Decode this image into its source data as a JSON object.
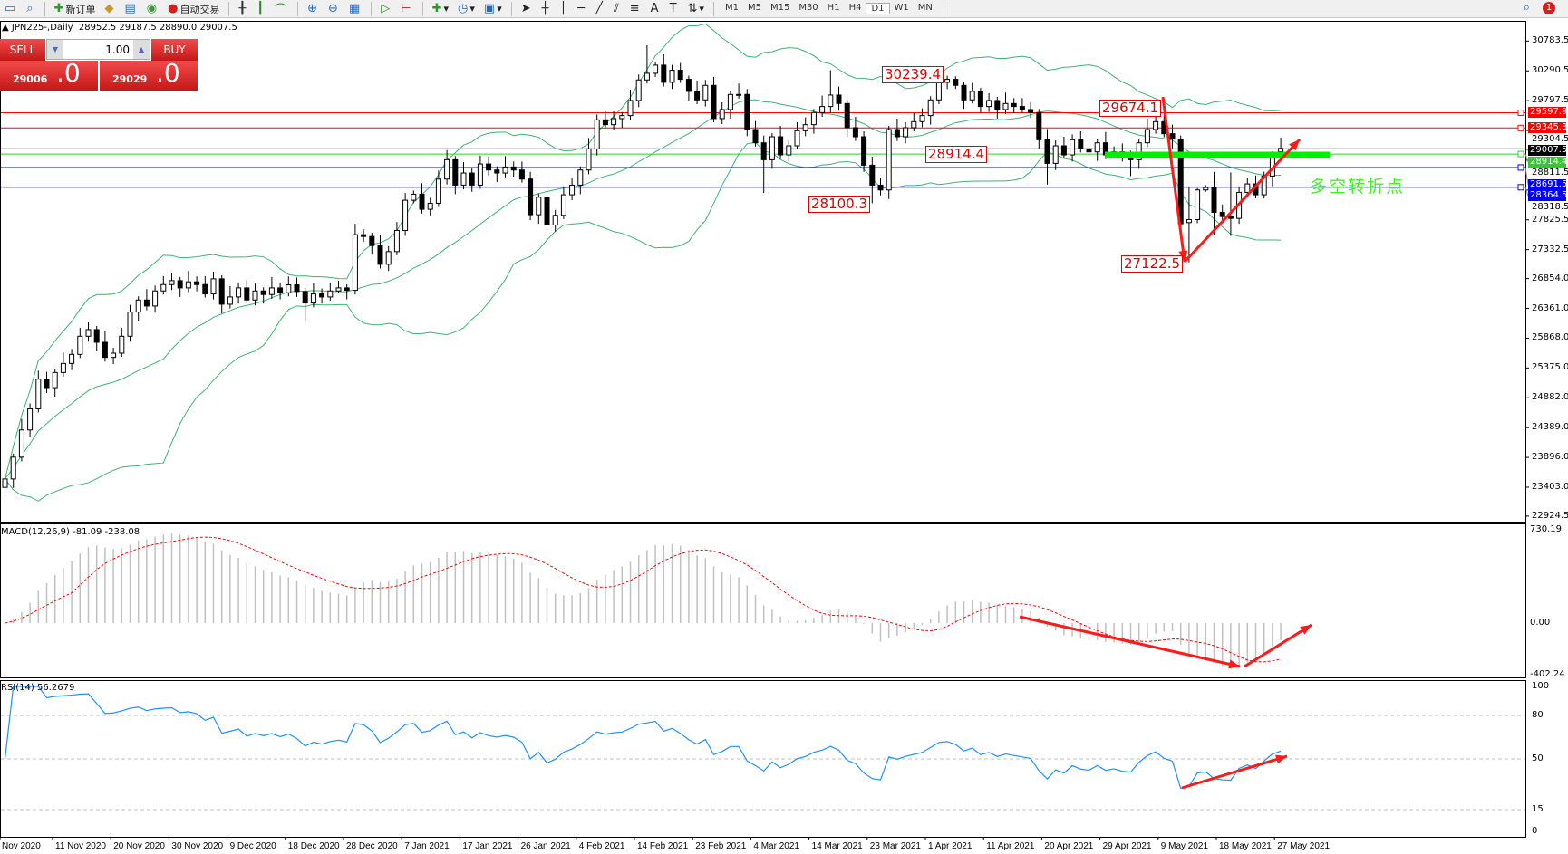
{
  "toolbar": {
    "new_order": "新订单",
    "auto_trading": "自动交易",
    "timeframes": [
      "M1",
      "M5",
      "M15",
      "M30",
      "H1",
      "H4",
      "D1",
      "W1",
      "MN"
    ],
    "active_timeframe": "D1",
    "notification_count": "1"
  },
  "chart": {
    "title": "JPN225-,Daily",
    "ohlc": "28952.5 29187.5 28890.0 29007.5"
  },
  "trade_panel": {
    "sell_label": "SELL",
    "buy_label": "BUY",
    "lot": "1.00",
    "bid_main": "29006",
    "bid_frac": ".0",
    "ask_main": "29029",
    "ask_frac": ".0"
  },
  "colors": {
    "bollinger": "#3cb371",
    "resistance": "#ff0000",
    "support": "#0000ff",
    "pivot": "#33cc33",
    "macd_hist": "#c0c0c0",
    "macd_signal": "#ff0000",
    "rsi": "#1e90ff"
  },
  "annotations": {
    "high_feb": "30239.4",
    "high_may": "29674.1",
    "pivot": "28914.4",
    "low_mar": "28100.3",
    "low_may": "27122.5",
    "turning_point": "多空转折点"
  },
  "chart_data": {
    "type": "candlestick",
    "symbol": "JPN225-",
    "timeframe": "Daily",
    "price_axis": [
      "30783.5",
      "30290.5",
      "29797.5",
      "29304.5",
      "28811.5",
      "28318.5",
      "27825.5",
      "27332.5",
      "26854.0",
      "26361.0",
      "25868.0",
      "25375.0",
      "24882.0",
      "24389.0",
      "23896.0",
      "23403.0",
      "22924.5"
    ],
    "ylim": [
      22850,
      31080
    ],
    "date_axis": [
      "Nov 2020",
      "11 Nov 2020",
      "20 Nov 2020",
      "30 Nov 2020",
      "9 Dec 2020",
      "18 Dec 2020",
      "28 Dec 2020",
      "7 Jan 2021",
      "17 Jan 2021",
      "26 Jan 2021",
      "4 Feb 2021",
      "14 Feb 2021",
      "23 Feb 2021",
      "4 Mar 2021",
      "14 Mar 2021",
      "23 Mar 2021",
      "1 Apr 2021",
      "11 Apr 2021",
      "20 Apr 2021",
      "29 Apr 2021",
      "9 May 2021",
      "18 May 2021",
      "27 May 2021"
    ],
    "horizontal_lines": [
      {
        "price": 29597.9,
        "color": "#ff0000",
        "label": "29597.9"
      },
      {
        "price": 29345.3,
        "color": "#ff0000",
        "label": "29345.3"
      },
      {
        "price": 29007.5,
        "color": "#000000",
        "label": "29007.5"
      },
      {
        "price": 28914.4,
        "color": "#33cc33",
        "label": "28914.4"
      },
      {
        "price": 28691.5,
        "color": "#0000ff",
        "label": "28691.5"
      },
      {
        "price": 28364.5,
        "color": "#0000ff",
        "label": "28364.5"
      }
    ],
    "candles_ohlc": [
      [
        23400,
        23660,
        23310,
        23540
      ],
      [
        23540,
        23960,
        23390,
        23900
      ],
      [
        23900,
        24530,
        23830,
        24350
      ],
      [
        24350,
        24790,
        24240,
        24700
      ],
      [
        24700,
        25330,
        24640,
        25190
      ],
      [
        25190,
        25310,
        24960,
        25050
      ],
      [
        25050,
        25360,
        24900,
        25300
      ],
      [
        25300,
        25630,
        25230,
        25450
      ],
      [
        25450,
        25690,
        25340,
        25600
      ],
      [
        25600,
        26040,
        25540,
        25900
      ],
      [
        25900,
        26130,
        25810,
        26010
      ],
      [
        26010,
        26070,
        25650,
        25800
      ],
      [
        25800,
        25980,
        25480,
        25550
      ],
      [
        25550,
        25710,
        25440,
        25620
      ],
      [
        25620,
        26040,
        25560,
        25900
      ],
      [
        25900,
        26420,
        25810,
        26300
      ],
      [
        26300,
        26560,
        26150,
        26500
      ],
      [
        26500,
        26680,
        26330,
        26400
      ],
      [
        26400,
        26740,
        26290,
        26650
      ],
      [
        26650,
        26895,
        26590,
        26755
      ],
      [
        26755,
        26940,
        26665,
        26820
      ],
      [
        26820,
        26880,
        26550,
        26700
      ],
      [
        26700,
        26980,
        26630,
        26800
      ],
      [
        26800,
        26890,
        26645,
        26755
      ],
      [
        26755,
        26895,
        26540,
        26600
      ],
      [
        26600,
        26970,
        26510,
        26850
      ],
      [
        26850,
        26910,
        26280,
        26430
      ],
      [
        26430,
        26730,
        26360,
        26550
      ],
      [
        26550,
        26790,
        26440,
        26700
      ],
      [
        26700,
        26840,
        26440,
        26500
      ],
      [
        26500,
        26770,
        26410,
        26650
      ],
      [
        26650,
        26710,
        26440,
        26590
      ],
      [
        26590,
        26880,
        26520,
        26700
      ],
      [
        26700,
        26790,
        26510,
        26620
      ],
      [
        26620,
        26890,
        26560,
        26750
      ],
      [
        26750,
        26870,
        26550,
        26640
      ],
      [
        26640,
        26700,
        26140,
        26450
      ],
      [
        26450,
        26780,
        26380,
        26600
      ],
      [
        26600,
        26690,
        26440,
        26550
      ],
      [
        26550,
        26790,
        26490,
        26650
      ],
      [
        26650,
        26820,
        26610,
        26700
      ],
      [
        26700,
        26760,
        26510,
        26660
      ],
      [
        26660,
        27760,
        26590,
        27580
      ],
      [
        27580,
        27670,
        27460,
        27550
      ],
      [
        27550,
        27610,
        27250,
        27400
      ],
      [
        27400,
        27580,
        27020,
        27090
      ],
      [
        27090,
        27390,
        26980,
        27300
      ],
      [
        27300,
        27790,
        27240,
        27650
      ],
      [
        27650,
        28270,
        27560,
        28150
      ],
      [
        28150,
        28310,
        28100,
        28250
      ],
      [
        28250,
        28430,
        27930,
        28000
      ],
      [
        28000,
        28190,
        27890,
        28100
      ],
      [
        28100,
        28640,
        28040,
        28500
      ],
      [
        28500,
        28979,
        28410,
        28820
      ],
      [
        28820,
        28880,
        28250,
        28400
      ],
      [
        28400,
        28780,
        28330,
        28600
      ],
      [
        28600,
        28690,
        28290,
        28400
      ],
      [
        28400,
        28890,
        28340,
        28750
      ],
      [
        28750,
        28870,
        28560,
        28650
      ],
      [
        28650,
        28710,
        28450,
        28600
      ],
      [
        28600,
        28880,
        28530,
        28700
      ],
      [
        28700,
        28790,
        28540,
        28650
      ],
      [
        28650,
        28790,
        28440,
        28500
      ],
      [
        28500,
        28620,
        27820,
        27910
      ],
      [
        27910,
        28260,
        27760,
        28200
      ],
      [
        28200,
        28380,
        27600,
        27740
      ],
      [
        27740,
        27990,
        27630,
        27900
      ],
      [
        27900,
        28380,
        27840,
        28240
      ],
      [
        28240,
        28520,
        28150,
        28400
      ],
      [
        28400,
        28710,
        28250,
        28650
      ],
      [
        28650,
        29180,
        28580,
        29000
      ],
      [
        29000,
        29570,
        28890,
        29480
      ],
      [
        29480,
        29620,
        29340,
        29400
      ],
      [
        29400,
        29620,
        29310,
        29500
      ],
      [
        29500,
        29610,
        29350,
        29550
      ],
      [
        29550,
        29980,
        29480,
        29800
      ],
      [
        29800,
        30230,
        29690,
        30140
      ],
      [
        30140,
        30714,
        30080,
        30250
      ],
      [
        30250,
        30445,
        30190,
        30385
      ],
      [
        30385,
        30565,
        30030,
        30100
      ],
      [
        30100,
        30390,
        29990,
        30300
      ],
      [
        30300,
        30420,
        30090,
        30150
      ],
      [
        30150,
        30210,
        29800,
        29950
      ],
      [
        29950,
        30130,
        29740,
        29810
      ],
      [
        29810,
        30140,
        29700,
        30050
      ],
      [
        30050,
        30190,
        29440,
        29500
      ],
      [
        29500,
        29770,
        29410,
        29650
      ],
      [
        29650,
        29960,
        29500,
        29900
      ],
      [
        29900,
        30080,
        29830,
        29900
      ],
      [
        29900,
        29990,
        29210,
        29320
      ],
      [
        29320,
        29460,
        29040,
        29100
      ],
      [
        29100,
        29220,
        28270,
        28820
      ],
      [
        28820,
        29260,
        28670,
        29200
      ],
      [
        29200,
        29380,
        28830,
        28900
      ],
      [
        28900,
        29140,
        28790,
        29050
      ],
      [
        29050,
        29440,
        28990,
        29300
      ],
      [
        29300,
        29520,
        29210,
        29400
      ],
      [
        29400,
        29660,
        29250,
        29600
      ],
      [
        29600,
        29880,
        29530,
        29700
      ],
      [
        29700,
        30300,
        29590,
        29890
      ],
      [
        29890,
        30030,
        29630,
        29750
      ],
      [
        29750,
        29810,
        29200,
        29350
      ],
      [
        29350,
        29530,
        29130,
        29200
      ],
      [
        29200,
        29290,
        28620,
        28730
      ],
      [
        28730,
        28870,
        28100.3,
        28400
      ],
      [
        28400,
        28520,
        28230,
        28320
      ],
      [
        28320,
        29380,
        28170,
        29320
      ],
      [
        29320,
        29500,
        29130,
        29200
      ],
      [
        29200,
        29440,
        29090,
        29350
      ],
      [
        29350,
        29590,
        29290,
        29450
      ],
      [
        29450,
        29670,
        29360,
        29550
      ],
      [
        29550,
        29870,
        29400,
        29810
      ],
      [
        29810,
        30239.4,
        29740,
        30100
      ],
      [
        30100,
        30210,
        29990,
        30150
      ],
      [
        30150,
        30200,
        29990,
        30050
      ],
      [
        30050,
        30110,
        29660,
        29810
      ],
      [
        29810,
        30090,
        29750,
        29950
      ],
      [
        29950,
        30010,
        29590,
        29700
      ],
      [
        29700,
        29920,
        29610,
        29800
      ],
      [
        29800,
        29860,
        29500,
        29650
      ],
      [
        29650,
        29930,
        29580,
        29750
      ],
      [
        29750,
        29840,
        29590,
        29700
      ],
      [
        29700,
        29840,
        29590,
        29650
      ],
      [
        29650,
        29770,
        29510,
        29600
      ],
      [
        29600,
        29660,
        29000,
        29150
      ],
      [
        29150,
        29330,
        28410,
        28760
      ],
      [
        28760,
        29140,
        28650,
        29050
      ],
      [
        29050,
        29200,
        28840,
        28900
      ],
      [
        28900,
        29240,
        28790,
        29150
      ],
      [
        29150,
        29290,
        28940,
        29000
      ],
      [
        29000,
        29120,
        28860,
        28950
      ],
      [
        28950,
        29160,
        28800,
        29100
      ],
      [
        29100,
        29280,
        28830,
        28900
      ],
      [
        28900,
        29040,
        28840,
        28950
      ],
      [
        28950,
        29090,
        28790,
        28850
      ],
      [
        28850,
        28970,
        28550,
        28820
      ],
      [
        28820,
        29160,
        28670,
        29100
      ],
      [
        29100,
        29500,
        29030,
        29320
      ],
      [
        29320,
        29674.1,
        29250,
        29450
      ],
      [
        29450,
        29560,
        29190,
        29250
      ],
      [
        29250,
        29400,
        29000,
        29160
      ],
      [
        29160,
        29220,
        27650,
        27760
      ],
      [
        27780,
        28380,
        27122.5,
        27830
      ],
      [
        27830,
        28350,
        27770,
        28320
      ],
      [
        28320,
        28400,
        28290,
        28360
      ],
      [
        28360,
        28620,
        27580,
        27950
      ],
      [
        27950,
        28080,
        27800,
        27880
      ],
      [
        27880,
        28610,
        27560,
        27850
      ],
      [
        27850,
        28380,
        27760,
        28280
      ],
      [
        28280,
        28520,
        28200,
        28420
      ],
      [
        28420,
        28560,
        28180,
        28240
      ],
      [
        28240,
        28620,
        28180,
        28550
      ],
      [
        28550,
        28960,
        28380,
        28870
      ],
      [
        28952.5,
        29187.5,
        28890.0,
        29007.5
      ]
    ],
    "indicators": {
      "bollinger": {
        "period": 20,
        "deviation": 2
      },
      "macd": {
        "label": "MACD(12,26,9) -81.09 -238.08",
        "fast": 12,
        "slow": 26,
        "signal": 9,
        "axis": [
          "730.19",
          "0.00",
          "-402.24"
        ],
        "ylim": [
          -402.24,
          730.19
        ]
      },
      "rsi": {
        "label": "RSI(14) 56.2679",
        "period": 14,
        "levels": [
          "80",
          "50",
          "15"
        ],
        "axis": [
          "100",
          "80",
          "50",
          "15",
          "0"
        ],
        "ylim": [
          0,
          100
        ]
      }
    }
  }
}
